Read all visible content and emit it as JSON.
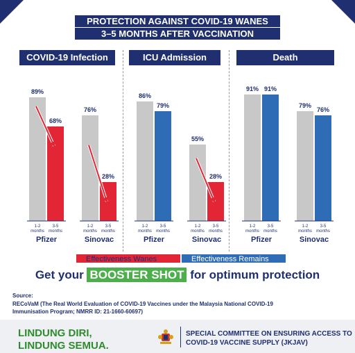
{
  "title_line1": "PROTECTION AGAINST COVID-19 WANES",
  "title_line2": "3–5 MONTHS AFTER VACCINATION",
  "colors": {
    "navy": "#1f2f6f",
    "wanes": "#e32636",
    "remains": "#2e6db5",
    "baseline": "#c8c8c8",
    "green": "#4caf4c"
  },
  "chart_data": [
    {
      "type": "bar",
      "title": "COVID-19 Infection",
      "groups": [
        {
          "name": "Pfizer",
          "before": 89,
          "after": 68,
          "trend": "wanes"
        },
        {
          "name": "Sinovac",
          "before": 76,
          "after": 28,
          "trend": "wanes"
        }
      ]
    },
    {
      "type": "bar",
      "title": "ICU Admission",
      "groups": [
        {
          "name": "Pfizer",
          "before": 86,
          "after": 79,
          "trend": "remains"
        },
        {
          "name": "Sinovac",
          "before": 55,
          "after": 28,
          "trend": "wanes"
        }
      ]
    },
    {
      "type": "bar",
      "title": "Death",
      "groups": [
        {
          "name": "Pfizer",
          "before": 91,
          "after": 91,
          "trend": "remains"
        },
        {
          "name": "Sinovac",
          "before": 79,
          "after": 76,
          "trend": "remains"
        }
      ]
    }
  ],
  "period_labels": {
    "before": [
      "1-2",
      "months"
    ],
    "after": [
      "3-5",
      "months"
    ]
  },
  "legend": {
    "wanes": "Effectiveness Wanes",
    "remains": "Effectiveness Remains"
  },
  "cta": {
    "prefix": "Get your",
    "highlight": "BOOSTER SHOT",
    "suffix": "for optimum protection"
  },
  "source": {
    "label": "Source:",
    "text": "RECoVaM (The Real World Evaluation of COVID-19 Vaccines under the Malaysia National COVID-19 Immunisation Program; NMRR ID: 21-1660-60697)"
  },
  "footer": {
    "slogan_line1": "LINDUNG DIRI,",
    "slogan_line2": "LINDUNG SEMUA.",
    "committee": "SPECIAL COMMITTEE ON ENSURING ACCESS TO COVID-19 VACCINE SUPPLY (JKJAV)",
    "crest_icon": "malaysia-coat-of-arms-icon"
  }
}
